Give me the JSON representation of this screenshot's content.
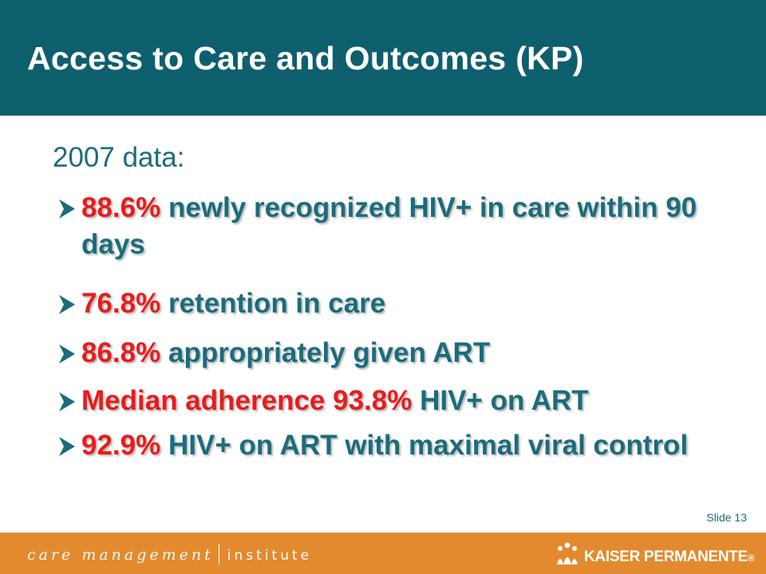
{
  "header": {
    "title": "Access to Care and Outcomes (KP)",
    "background_color": "#0e5f6e"
  },
  "content": {
    "subtitle": "2007 data:",
    "bullets": [
      {
        "highlight": "88.6%",
        "text": " newly recognized HIV+ in care within 90 days"
      },
      {
        "highlight": "76.8%",
        "text": " retention in care"
      },
      {
        "highlight": "86.8%",
        "text": " appropriately given ART"
      },
      {
        "highlight": "Median adherence 93.8%",
        "text": " HIV+ on ART"
      },
      {
        "highlight": "92.9%",
        "text": " HIV+ on ART with maximal viral control"
      }
    ],
    "highlight_color": "#e81c1c",
    "text_color": "#1b6c7c"
  },
  "slide_number": "Slide 13",
  "footer": {
    "left_brand_part1": "care management",
    "left_brand_part2": "institute",
    "right_brand": "KAISER PERMANENTE",
    "right_brand_mark": "®",
    "background_color": "#e38a2e",
    "bullet_icon": "arrow-bullet-icon",
    "logo_icon": "kaiser-permanente-logo-icon"
  }
}
